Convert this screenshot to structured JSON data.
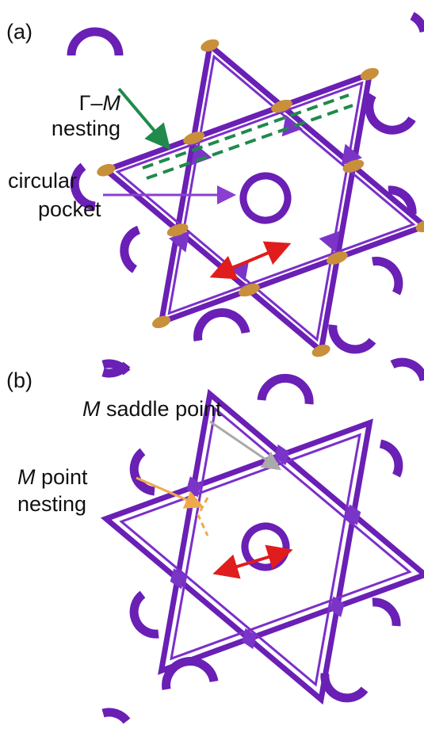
{
  "panels": [
    {
      "label": "(a)",
      "annotations": [
        {
          "lines": [
            [
              "Γ–",
              "M"
            ],
            [
              "nesting"
            ]
          ]
        },
        {
          "lines": [
            [
              "circular"
            ],
            [
              "pocket"
            ]
          ]
        }
      ]
    },
    {
      "label": "(b)",
      "annotations": [
        {
          "lines": [
            [
              "M",
              " saddle point"
            ]
          ]
        },
        {
          "lines": [
            [
              "M",
              " point"
            ],
            [
              "nesting"
            ]
          ]
        }
      ]
    }
  ]
}
